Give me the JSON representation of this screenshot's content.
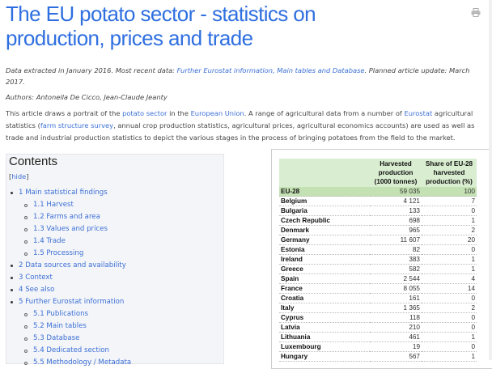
{
  "title": "The EU potato sector - statistics on production, prices and trade",
  "icons": {
    "print": "printer-icon"
  },
  "meta": {
    "extracted_prefix": "Data extracted in January 2016. Most recent data: ",
    "extracted_link": "Further Eurostat information, Main tables and Database",
    "extracted_suffix": ". Planned article update: March 2017.",
    "authors": "Authors: Antonella De Cicco, Jean-Claude Jeanty"
  },
  "intro": {
    "t1": "This article draws a portrait of the ",
    "l1": "potato sector",
    "t2": " in the ",
    "l2": "European Union",
    "t3": ". A range of agricultural data from a number of ",
    "l3": "Eurostat",
    "t4": " agricultural statistics (",
    "l4": "farm structure survey",
    "t5": ", annual crop production statistics, agricultural prices, agricultural economics accounts) are used as well as trade and industrial production statistics to depict the various stages in the process of bringing potatoes from the field to the market."
  },
  "toc": {
    "heading": "Contents",
    "hide_open": "[",
    "hide": "hide",
    "hide_close": "]",
    "items": [
      {
        "level": 1,
        "label": "1 Main statistical findings"
      },
      {
        "level": 2,
        "label": "1.1 Harvest"
      },
      {
        "level": 2,
        "label": "1.2 Farms and area"
      },
      {
        "level": 2,
        "label": "1.3 Values and prices"
      },
      {
        "level": 2,
        "label": "1.4 Trade"
      },
      {
        "level": 2,
        "label": "1.5 Processing"
      },
      {
        "level": 1,
        "label": "2 Data sources and availability"
      },
      {
        "level": 1,
        "label": "3 Context"
      },
      {
        "level": 1,
        "label": "4 See also"
      },
      {
        "level": 1,
        "label": "5 Further Eurostat information"
      },
      {
        "level": 2,
        "label": "5.1 Publications"
      },
      {
        "level": 2,
        "label": "5.2 Main tables"
      },
      {
        "level": 2,
        "label": "5.3 Database"
      },
      {
        "level": 2,
        "label": "5.4 Dedicated section"
      },
      {
        "level": 2,
        "label": "5.5 Methodology / Metadata"
      }
    ]
  },
  "table": {
    "headers": [
      "",
      "Harvested production (1000 tonnes)",
      "Share of EU-28 harvested production (%)"
    ],
    "rows": [
      [
        "EU-28",
        "59 035",
        "100"
      ],
      [
        "Belgium",
        "4 121",
        "7"
      ],
      [
        "Bulgaria",
        "133",
        "0"
      ],
      [
        "Czech Republic",
        "698",
        "1"
      ],
      [
        "Denmark",
        "965",
        "2"
      ],
      [
        "Germany",
        "11 607",
        "20"
      ],
      [
        "Estonia",
        "82",
        "0"
      ],
      [
        "Ireland",
        "383",
        "1"
      ],
      [
        "Greece",
        "582",
        "1"
      ],
      [
        "Spain",
        "2 544",
        "4"
      ],
      [
        "France",
        "8 055",
        "14"
      ],
      [
        "Croatia",
        "161",
        "0"
      ],
      [
        "Italy",
        "1 365",
        "2"
      ],
      [
        "Cyprus",
        "118",
        "0"
      ],
      [
        "Latvia",
        "210",
        "0"
      ],
      [
        "Lithuania",
        "461",
        "1"
      ],
      [
        "Luxembourg",
        "19",
        "0"
      ],
      [
        "Hungary",
        "567",
        "1"
      ]
    ]
  }
}
